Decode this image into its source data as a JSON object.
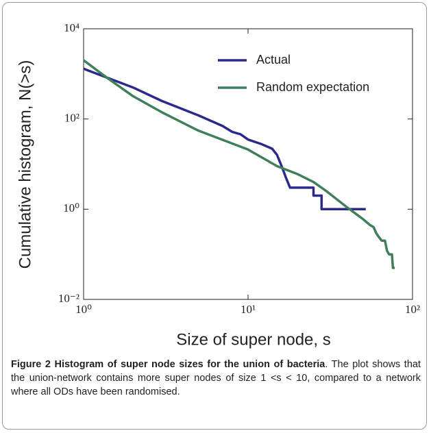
{
  "chart_data": {
    "type": "line",
    "ylabel": "Cumulative histogram, N(>s)",
    "xlabel": "Size of super node, s",
    "xlog": true,
    "ylog": true,
    "xlim": [
      1,
      100
    ],
    "ylim": [
      0.01,
      10000
    ],
    "xticks": [
      {
        "value": 1,
        "label": "10⁰"
      },
      {
        "value": 10,
        "label": "10¹"
      },
      {
        "value": 100,
        "label": "10²"
      }
    ],
    "yticks": [
      {
        "value": 0.01,
        "label": "10⁻²"
      },
      {
        "value": 1,
        "label": "10⁰"
      },
      {
        "value": 100,
        "label": "10²"
      },
      {
        "value": 10000,
        "label": "10⁴"
      }
    ],
    "legend": "upper right",
    "series": [
      {
        "name": "Actual",
        "color": "#2b2a8c",
        "x": [
          1,
          2,
          3,
          5,
          7,
          8,
          9,
          10,
          12,
          14,
          15,
          16,
          17,
          18,
          20,
          25,
          25,
          28,
          28,
          35,
          52
        ],
        "values": [
          1300,
          500,
          250,
          120,
          70,
          52,
          46,
          35,
          28,
          22,
          16,
          9,
          5,
          3,
          3,
          3,
          2,
          2,
          1,
          1,
          1
        ]
      },
      {
        "name": "Random expectation",
        "color": "#3f7f5a",
        "x": [
          1,
          1.4,
          2,
          3,
          5,
          10,
          15,
          20,
          25,
          30,
          40,
          45,
          50,
          55,
          58,
          60,
          62,
          65,
          68,
          70,
          72,
          75,
          76,
          78
        ],
        "values": [
          2000,
          800,
          320,
          140,
          55,
          21,
          9,
          6,
          4,
          2.5,
          1.1,
          0.8,
          0.6,
          0.45,
          0.4,
          0.3,
          0.25,
          0.2,
          0.2,
          0.12,
          0.1,
          0.1,
          0.05,
          0.05
        ]
      }
    ],
    "caption": {
      "bold": "Figure 2 Histogram of super node sizes for the union of bacteria",
      "text": ". The plot shows that the union-network contains more super nodes of size 1 <s < 10, compared to a network where all ODs have been randomised."
    }
  }
}
